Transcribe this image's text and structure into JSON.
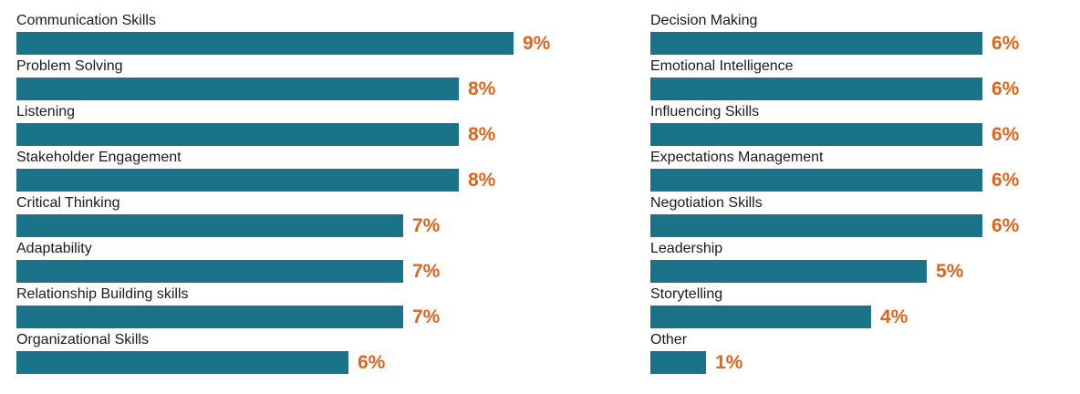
{
  "colors": {
    "bar": "#1b7389",
    "value_label": "#e0641b",
    "label": "#1a1a1a"
  },
  "chart_data": [
    {
      "type": "bar",
      "orientation": "horizontal",
      "categories": [
        "Communication Skills",
        "Problem Solving",
        "Listening",
        "Stakeholder Engagement",
        "Critical Thinking",
        "Adaptability",
        "Relationship Building skills",
        "Organizational Skills"
      ],
      "values": [
        9,
        8,
        8,
        8,
        7,
        7,
        7,
        6
      ],
      "value_labels": [
        "9%",
        "8%",
        "8%",
        "8%",
        "7%",
        "7%",
        "7%",
        "6%"
      ],
      "unit": "%",
      "xlim": [
        0,
        9
      ],
      "grid": false,
      "legend": "none"
    },
    {
      "type": "bar",
      "orientation": "horizontal",
      "categories": [
        "Decision Making",
        "Emotional Intelligence",
        "Influencing Skills",
        "Expectations Management",
        "Negotiation Skills",
        "Leadership",
        "Storytelling",
        "Other"
      ],
      "values": [
        6,
        6,
        6,
        6,
        6,
        5,
        4,
        1
      ],
      "value_labels": [
        "6%",
        "6%",
        "6%",
        "6%",
        "6%",
        "5%",
        "4%",
        "1%"
      ],
      "unit": "%",
      "xlim": [
        0,
        9
      ],
      "grid": false,
      "legend": "none"
    }
  ]
}
